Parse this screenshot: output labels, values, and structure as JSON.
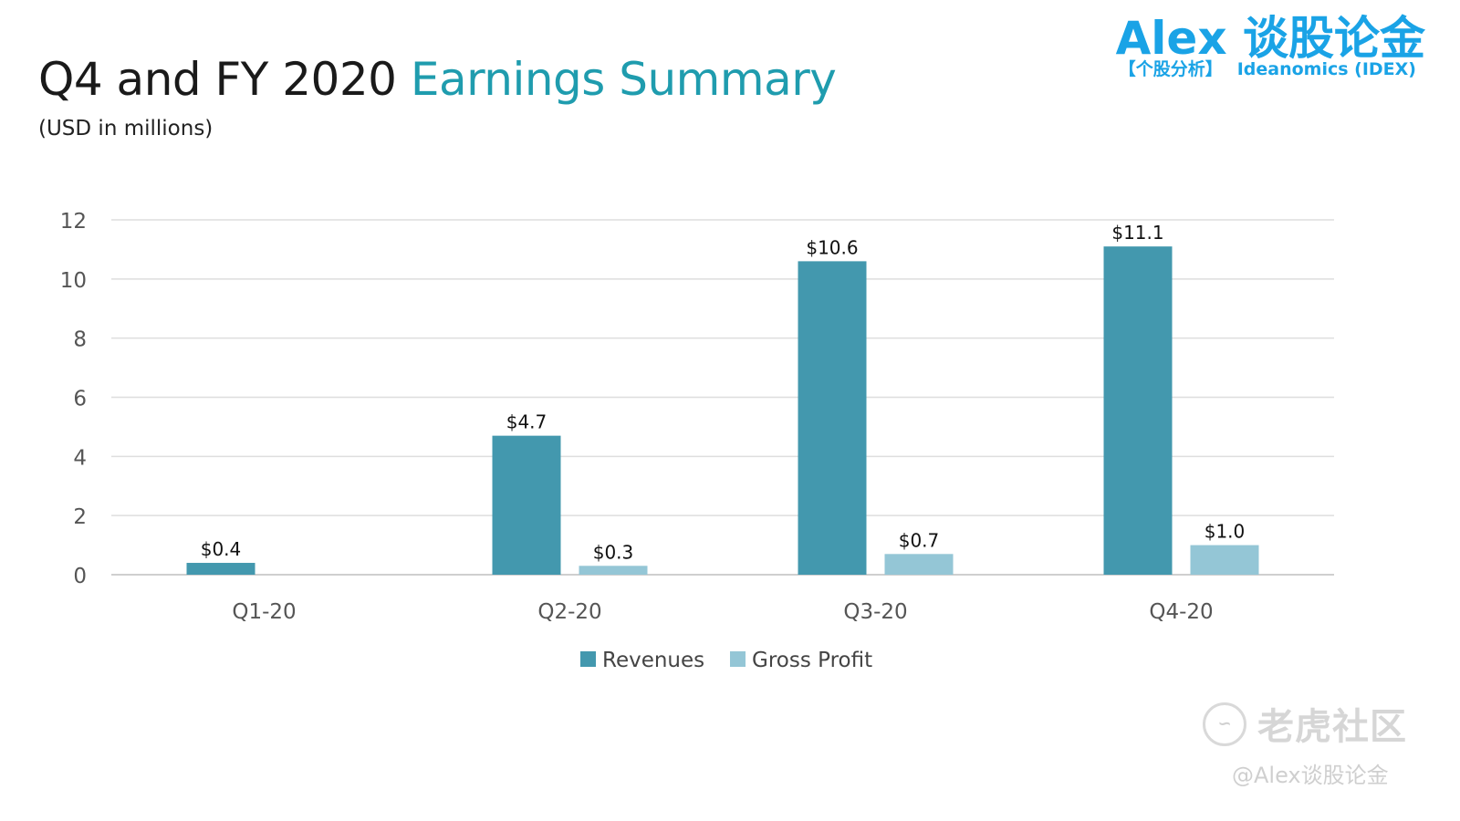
{
  "header": {
    "title_main": "Q4 and FY 2020",
    "title_accent": "Earnings Summary",
    "subtitle": "(USD in millions)"
  },
  "brand": {
    "name": "Alex 谈股论金",
    "tag": "【个股分析】",
    "stock": "Ideanomics (IDEX)",
    "color": "#1aa3e6"
  },
  "watermark": {
    "icon": "tiger-logo-icon",
    "main": "老虎社区",
    "sub": "@Alex谈股论金"
  },
  "colors": {
    "accent": "#1f9cae",
    "revenues": "#4398ae",
    "gross_profit": "#94c6d6"
  },
  "chart_data": {
    "type": "bar",
    "title": "",
    "xlabel": "",
    "ylabel": "",
    "categories": [
      "Q1-20",
      "Q2-20",
      "Q3-20",
      "Q4-20"
    ],
    "series": [
      {
        "name": "Revenues",
        "values": [
          0.4,
          4.7,
          10.6,
          11.1
        ],
        "labels": [
          "$0.4",
          "$4.7",
          "$10.6",
          "$11.1"
        ],
        "color": "#4398ae"
      },
      {
        "name": "Gross Profit",
        "values": [
          null,
          0.3,
          0.7,
          1.0
        ],
        "labels": [
          "",
          "$0.3",
          "$0.7",
          "$1.0"
        ],
        "color": "#94c6d6"
      }
    ],
    "ylim": [
      0,
      12
    ],
    "yticks": [
      0,
      2,
      4,
      6,
      8,
      10,
      12
    ],
    "grid": true,
    "legend": "bottom-center"
  }
}
